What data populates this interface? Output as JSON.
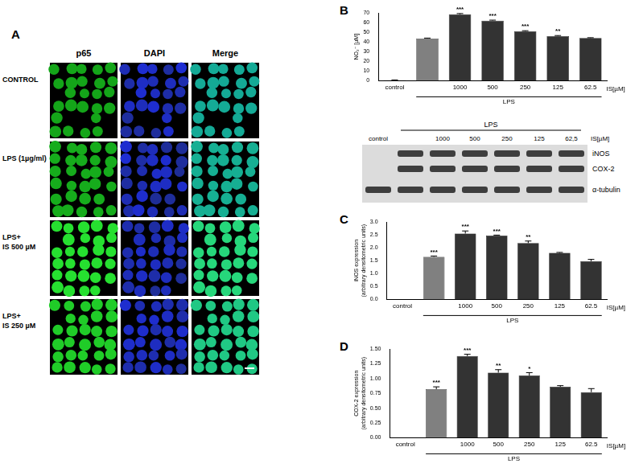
{
  "panel_a": {
    "label": "A",
    "columns": [
      "p65",
      "DAPI",
      "Merge"
    ],
    "rows": [
      [
        "CONTROL"
      ],
      [
        "LPS (1µg/ml)"
      ],
      [
        "LPS+",
        "IS 500 µM"
      ],
      [
        "LPS+",
        "IS 250 µM"
      ]
    ]
  },
  "blot": {
    "group": "LPS",
    "lanes": [
      "control",
      null,
      "1000",
      "500",
      "250",
      "125",
      "62,5"
    ],
    "unit": "IS[µM]",
    "bands": [
      "iNOS",
      "COX-2",
      "α-tubulin"
    ]
  },
  "chart_data": [
    {
      "panel": "B",
      "type": "bar",
      "ylabel": "NO₂⁻ [µM]",
      "categories": [
        "control",
        null,
        "1000",
        "500",
        "250",
        "125",
        "62.5"
      ],
      "values": [
        0.5,
        43.5,
        68.5,
        62,
        51,
        46,
        44
      ],
      "errors": [
        0.3,
        0.5,
        0.8,
        0.5,
        0.6,
        0.6,
        0.4
      ],
      "stars": [
        null,
        null,
        "***",
        "***",
        "***",
        "**",
        null
      ],
      "colors": [
        "#000000",
        "#808080",
        "#333333",
        "#333333",
        "#333333",
        "#333333",
        "#333333"
      ],
      "annotations": {
        "unit": "IS[µM]",
        "group": "LPS"
      },
      "ylim": [
        0,
        70
      ],
      "yticks": [
        0,
        10,
        20,
        30,
        40,
        50,
        60,
        70
      ],
      "grid": false
    },
    {
      "panel": "C",
      "type": "bar",
      "ylabel": [
        "iNOS expression",
        "(arbitrary densitometric units)"
      ],
      "categories": [
        "control",
        null,
        "1000",
        "500",
        "250",
        "125",
        "62.5"
      ],
      "values": [
        0,
        1.65,
        2.55,
        2.47,
        2.18,
        1.8,
        1.48
      ],
      "errors": [
        0,
        0.03,
        0.1,
        0.02,
        0.08,
        0.02,
        0.07
      ],
      "stars": [
        null,
        "***",
        "***",
        "***",
        "**",
        null,
        null
      ],
      "colors": [
        "#000000",
        "#808080",
        "#333333",
        "#333333",
        "#333333",
        "#333333",
        "#333333"
      ],
      "annotations": {
        "unit": "IS[µM]",
        "group": "LPS"
      },
      "ylim": [
        0,
        3
      ],
      "yticks": [
        {
          "value": 0,
          "label": "0.0"
        },
        {
          "value": 0.5,
          "label": "0.5"
        },
        {
          "value": 1,
          "label": "1.0"
        },
        {
          "value": 1.5,
          "label": "1.5"
        },
        {
          "value": 2,
          "label": "2.0"
        },
        {
          "value": 2.5,
          "label": "2.5"
        },
        {
          "value": 3,
          "label": "3.0"
        }
      ],
      "grid": false
    },
    {
      "panel": "D",
      "type": "bar",
      "ylabel": [
        "COX-2 expression",
        "(arbitrary densitometric units)"
      ],
      "categories": [
        "control",
        null,
        "1000",
        "500",
        "250",
        "125",
        "62.5"
      ],
      "values": [
        0,
        0.82,
        1.38,
        1.1,
        1.05,
        0.86,
        0.77
      ],
      "errors": [
        0,
        0.04,
        0.03,
        0.05,
        0.05,
        0.02,
        0.06
      ],
      "stars": [
        null,
        "***",
        "***",
        "**",
        "*",
        null,
        null
      ],
      "colors": [
        "#000000",
        "#808080",
        "#333333",
        "#333333",
        "#333333",
        "#333333",
        "#333333"
      ],
      "annotations": {
        "unit": "IS[µM]",
        "group": "LPS"
      },
      "ylim": [
        0,
        1.5
      ],
      "yticks": [
        {
          "value": 0,
          "label": "0.00"
        },
        {
          "value": 0.25,
          "label": "0.25"
        },
        {
          "value": 0.5,
          "label": "0.50"
        },
        {
          "value": 0.75,
          "label": "0.75"
        },
        {
          "value": 1,
          "label": "1.00"
        },
        {
          "value": 1.25,
          "label": "1.25"
        },
        {
          "value": 1.5,
          "label": "1.50"
        }
      ],
      "grid": false
    }
  ]
}
